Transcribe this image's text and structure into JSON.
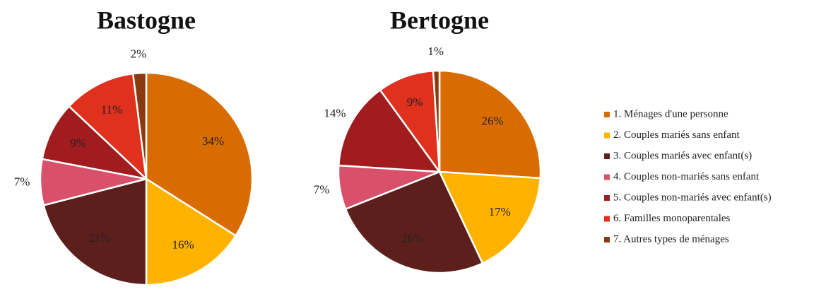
{
  "chart_data": [
    {
      "type": "pie",
      "title": "Bastogne",
      "values": [
        34,
        16,
        21,
        7,
        9,
        11,
        2
      ],
      "value_labels": [
        "34%",
        "16%",
        "21%",
        "7%",
        "9%",
        "11%",
        "2%"
      ]
    },
    {
      "type": "pie",
      "title": "Bertogne",
      "values": [
        26,
        17,
        26,
        7,
        14,
        9,
        1
      ],
      "value_labels": [
        "26%",
        "17%",
        "26%",
        "7%",
        "14%",
        "9%",
        "1%"
      ]
    }
  ],
  "legend": {
    "categories": [
      "1. Ménages d'une personne",
      "2. Couples mariés sans enfant",
      "3. Couples mariés avec enfant(s)",
      "4. Couples non-mariés sans enfant",
      "5. Couples non-mariés avec enfant(s)",
      "6. Familles monoparentales",
      "7. Autres types de ménages"
    ],
    "colors": [
      "#d96c00",
      "#ffb300",
      "#5c1f1c",
      "#d9506b",
      "#a01c1e",
      "#e0301e",
      "#8b3a0f"
    ]
  }
}
